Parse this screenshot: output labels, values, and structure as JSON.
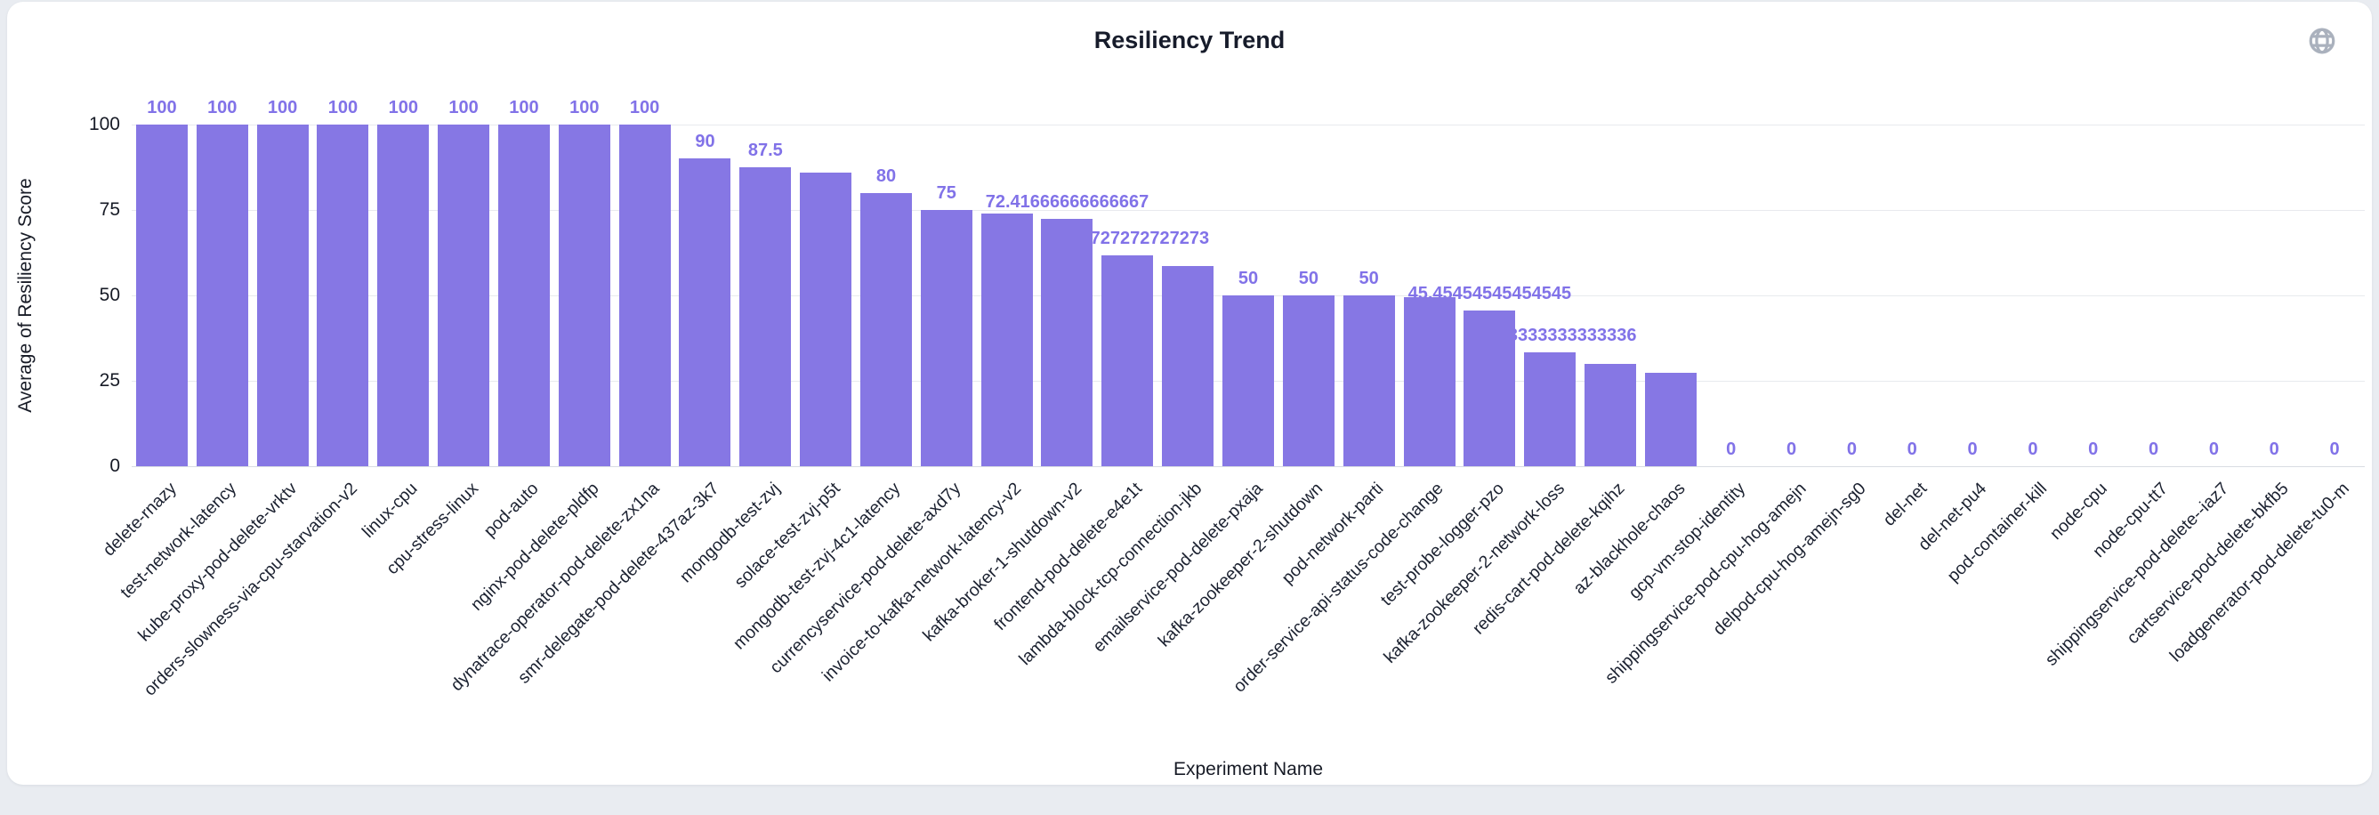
{
  "page": {
    "title": "Resiliency Trend"
  },
  "controls": {
    "globe_icon": "globe"
  },
  "chart_data": {
    "type": "bar",
    "title": "Resiliency Trend",
    "xlabel": "Experiment Name",
    "ylabel": "Average of Resiliency Score",
    "ylim": [
      0,
      100
    ],
    "yticks": [
      0,
      25,
      50,
      75,
      100
    ],
    "grid": true,
    "legend": false,
    "bar_color": "#8677e4",
    "value_label_color": "#8172e8",
    "categories": [
      "delete-rnazy",
      "test-network-latency",
      "kube-proxy-pod-delete-vrktv",
      "orders-slowness-via-cpu-starvation-v2",
      "linux-cpu",
      "cpu-stress-linux",
      "pod-auto",
      "nginx-pod-delete-pldfp",
      "dynatrace-operator-pod-delete-zx1na",
      "smr-delegate-pod-delete-437az-3k7",
      "mongodb-test-zvj",
      "solace-test-zvj-p5t",
      "mongodb-test-zvj-4c1-latency",
      "currencyservice-pod-delete-axd7y",
      "invoice-to-kafka-network-latency-v2",
      "kafka-broker-1-shutdown-v2",
      "frontend-pod-delete-e4e1t",
      "lambda-block-tcp-connection-jkb",
      "emailservice-pod-delete-pxaja",
      "kafka-zookeeper-2-shutdown",
      "pod-network-parti",
      "order-service-api-status-code-change",
      "test-probe-logger-pzo",
      "kafka-zookeeper-2-network-loss",
      "redis-cart-pod-delete-kqihz",
      "az-blackhole-chaos",
      "gcp-vm-stop-identity",
      "shippingservice-pod-cpu-hog-amejn",
      "delpod-cpu-hog-amejn-sg0",
      "del-net",
      "del-net-pu4",
      "pod-container-kill",
      "node-cpu",
      "node-cpu-tt7",
      "shippingservice-pod-delete--iaz7",
      "cartservice-pod-delete-bkfb5",
      "loadgenerator-pod-delete-tu0-m"
    ],
    "values": [
      100,
      100,
      100,
      100,
      100,
      100,
      100,
      100,
      100,
      90,
      87.5,
      86,
      80,
      75,
      74,
      72.41666666666667,
      61.72727272727273,
      58.6,
      50,
      50,
      50,
      49.6,
      45.45454545454545,
      33.333333333333336,
      30,
      27.3,
      0,
      0,
      0,
      0,
      0,
      0,
      0,
      0,
      0,
      0,
      0
    ],
    "labels": [
      "100",
      "100",
      "100",
      "100",
      "100",
      "100",
      "100",
      "100",
      "100",
      "90",
      "87.5",
      "",
      "80",
      "75",
      "",
      "72.41666666666667",
      "61.72727272727273",
      "",
      "50",
      "50",
      "50",
      "",
      "45.45454545454545",
      "33.333333333333336",
      "",
      "",
      "0",
      "0",
      "0",
      "0",
      "0",
      "0",
      "0",
      "0",
      "0",
      "0",
      "0"
    ]
  }
}
